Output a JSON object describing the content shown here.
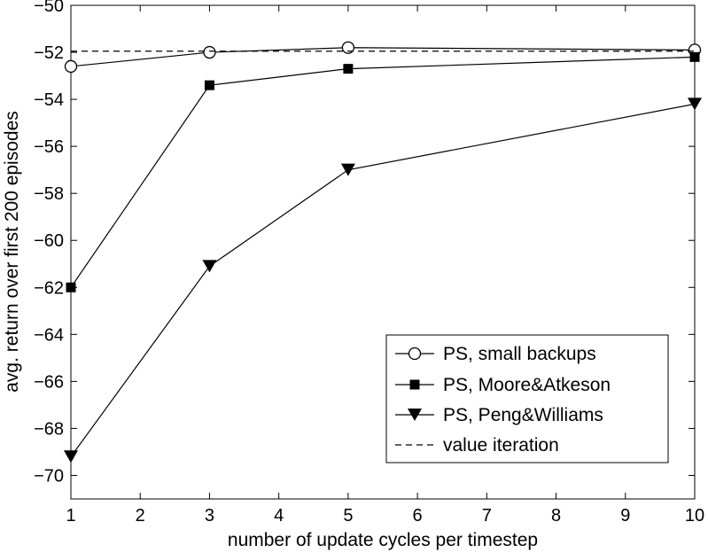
{
  "chart_data": {
    "type": "line",
    "title": "",
    "xlabel": "number of update cycles per timestep",
    "ylabel": "avg. return over first 200 episodes",
    "xlim": [
      1,
      10
    ],
    "ylim": [
      -71,
      -50
    ],
    "x_ticks": [
      1,
      2,
      3,
      4,
      5,
      6,
      7,
      8,
      9,
      10
    ],
    "y_ticks": [
      -50,
      -52,
      -54,
      -56,
      -58,
      -60,
      -62,
      -64,
      -66,
      -68,
      -70
    ],
    "x_tick_labels": [
      "1",
      "2",
      "3",
      "4",
      "5",
      "6",
      "7",
      "8",
      "9",
      "10"
    ],
    "y_tick_labels": [
      "−50",
      "−52",
      "−54",
      "−56",
      "−58",
      "−60",
      "−62",
      "−64",
      "−66",
      "−68",
      "−70"
    ],
    "grid": false,
    "legend_position": "bottom-right",
    "series": [
      {
        "name": "PS, small backups",
        "marker": "circle-open",
        "line": "solid",
        "color": "#000000",
        "x": [
          1,
          3,
          5,
          10
        ],
        "y": [
          -52.6,
          -52.0,
          -51.8,
          -51.9
        ]
      },
      {
        "name": "PS, Moore&Atkeson",
        "marker": "square-filled",
        "line": "solid",
        "color": "#000000",
        "x": [
          1,
          3,
          5,
          10
        ],
        "y": [
          -62.0,
          -53.4,
          -52.7,
          -52.2
        ]
      },
      {
        "name": "PS, Peng&Williams",
        "marker": "triangle-down-filled",
        "line": "solid",
        "color": "#000000",
        "x": [
          1,
          3,
          5,
          10
        ],
        "y": [
          -69.2,
          -61.1,
          -57.0,
          -54.2
        ]
      },
      {
        "name": "value iteration",
        "marker": "none",
        "line": "dashed",
        "color": "#000000",
        "x": [
          1,
          10
        ],
        "y": [
          -51.95,
          -51.95
        ]
      }
    ]
  }
}
